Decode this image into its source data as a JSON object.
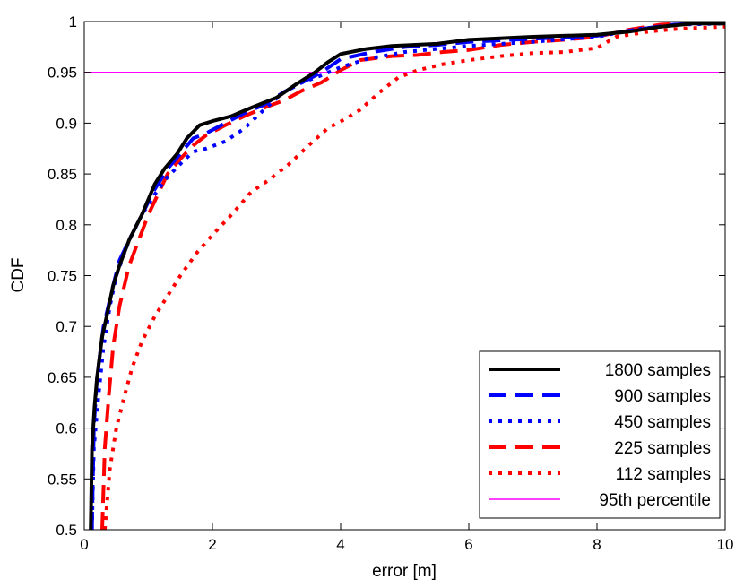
{
  "chart_data": {
    "type": "line",
    "title": "",
    "xlabel": "error [m]",
    "ylabel": "CDF",
    "xlim": [
      0,
      10
    ],
    "ylim": [
      0.5,
      1.0
    ],
    "grid": false,
    "legend_position": "bottom-right",
    "x_ticks": [
      "0",
      "2",
      "4",
      "6",
      "8",
      "10"
    ],
    "y_ticks": [
      "0.5",
      "0.55",
      "0.6",
      "0.65",
      "0.7",
      "0.75",
      "0.8",
      "0.85",
      "0.9",
      "0.95",
      "1"
    ],
    "series": [
      {
        "name": "1800 samples",
        "color": "#000000",
        "style": "solid",
        "points": [
          [
            0.1,
            0.5
          ],
          [
            0.12,
            0.58
          ],
          [
            0.16,
            0.62
          ],
          [
            0.2,
            0.65
          ],
          [
            0.28,
            0.69
          ],
          [
            0.35,
            0.71
          ],
          [
            0.45,
            0.74
          ],
          [
            0.55,
            0.76
          ],
          [
            0.7,
            0.785
          ],
          [
            0.9,
            0.81
          ],
          [
            1.1,
            0.84
          ],
          [
            1.25,
            0.855
          ],
          [
            1.45,
            0.87
          ],
          [
            1.6,
            0.885
          ],
          [
            1.8,
            0.898
          ],
          [
            2.0,
            0.902
          ],
          [
            2.3,
            0.907
          ],
          [
            2.6,
            0.915
          ],
          [
            3.0,
            0.925
          ],
          [
            3.3,
            0.938
          ],
          [
            3.6,
            0.95
          ],
          [
            3.8,
            0.96
          ],
          [
            4.0,
            0.968
          ],
          [
            4.4,
            0.973
          ],
          [
            4.8,
            0.976
          ],
          [
            5.5,
            0.978
          ],
          [
            6.0,
            0.982
          ],
          [
            7.0,
            0.985
          ],
          [
            8.0,
            0.987
          ],
          [
            8.5,
            0.99
          ],
          [
            9.0,
            0.995
          ],
          [
            9.5,
            0.998
          ],
          [
            10.0,
            0.998
          ]
        ]
      },
      {
        "name": "900 samples",
        "color": "#0000ff",
        "style": "dashed",
        "points": [
          [
            0.12,
            0.5
          ],
          [
            0.15,
            0.6
          ],
          [
            0.2,
            0.65
          ],
          [
            0.3,
            0.7
          ],
          [
            0.45,
            0.74
          ],
          [
            0.55,
            0.765
          ],
          [
            0.7,
            0.785
          ],
          [
            0.9,
            0.81
          ],
          [
            1.1,
            0.835
          ],
          [
            1.3,
            0.855
          ],
          [
            1.5,
            0.87
          ],
          [
            1.7,
            0.885
          ],
          [
            1.9,
            0.89
          ],
          [
            2.2,
            0.9
          ],
          [
            2.5,
            0.91
          ],
          [
            2.8,
            0.918
          ],
          [
            3.1,
            0.93
          ],
          [
            3.4,
            0.94
          ],
          [
            3.7,
            0.95
          ],
          [
            4.0,
            0.963
          ],
          [
            4.5,
            0.97
          ],
          [
            5.0,
            0.975
          ],
          [
            5.5,
            0.977
          ],
          [
            6.0,
            0.98
          ],
          [
            7.0,
            0.983
          ],
          [
            8.0,
            0.986
          ],
          [
            8.6,
            0.992
          ],
          [
            9.2,
            0.997
          ],
          [
            10.0,
            0.999
          ]
        ]
      },
      {
        "name": "450 samples",
        "color": "#0000ff",
        "style": "dotted",
        "points": [
          [
            0.12,
            0.5
          ],
          [
            0.15,
            0.58
          ],
          [
            0.22,
            0.63
          ],
          [
            0.3,
            0.68
          ],
          [
            0.4,
            0.72
          ],
          [
            0.5,
            0.75
          ],
          [
            0.7,
            0.785
          ],
          [
            0.9,
            0.81
          ],
          [
            1.1,
            0.83
          ],
          [
            1.3,
            0.847
          ],
          [
            1.5,
            0.86
          ],
          [
            1.7,
            0.872
          ],
          [
            1.9,
            0.875
          ],
          [
            2.2,
            0.882
          ],
          [
            2.5,
            0.895
          ],
          [
            2.8,
            0.913
          ],
          [
            3.1,
            0.93
          ],
          [
            3.4,
            0.94
          ],
          [
            3.7,
            0.947
          ],
          [
            4.0,
            0.955
          ],
          [
            4.4,
            0.963
          ],
          [
            5.0,
            0.97
          ],
          [
            5.5,
            0.973
          ],
          [
            6.0,
            0.976
          ],
          [
            6.5,
            0.978
          ],
          [
            7.0,
            0.98
          ],
          [
            8.0,
            0.985
          ],
          [
            8.7,
            0.993
          ],
          [
            9.3,
            0.997
          ],
          [
            10.0,
            0.998
          ]
        ]
      },
      {
        "name": "225 samples",
        "color": "#ff0000",
        "style": "dashed",
        "points": [
          [
            0.28,
            0.5
          ],
          [
            0.32,
            0.58
          ],
          [
            0.38,
            0.63
          ],
          [
            0.45,
            0.68
          ],
          [
            0.55,
            0.72
          ],
          [
            0.7,
            0.76
          ],
          [
            0.85,
            0.785
          ],
          [
            1.0,
            0.81
          ],
          [
            1.15,
            0.83
          ],
          [
            1.3,
            0.85
          ],
          [
            1.5,
            0.865
          ],
          [
            1.7,
            0.878
          ],
          [
            1.9,
            0.888
          ],
          [
            2.2,
            0.898
          ],
          [
            2.5,
            0.907
          ],
          [
            2.8,
            0.915
          ],
          [
            3.1,
            0.922
          ],
          [
            3.4,
            0.932
          ],
          [
            3.7,
            0.94
          ],
          [
            4.0,
            0.952
          ],
          [
            4.3,
            0.962
          ],
          [
            4.8,
            0.966
          ],
          [
            5.2,
            0.967
          ],
          [
            5.6,
            0.97
          ],
          [
            6.0,
            0.972
          ],
          [
            6.5,
            0.977
          ],
          [
            7.0,
            0.98
          ],
          [
            7.5,
            0.982
          ],
          [
            8.0,
            0.985
          ],
          [
            8.5,
            0.992
          ],
          [
            9.0,
            0.997
          ],
          [
            10.0,
            1.0
          ]
        ]
      },
      {
        "name": "112 samples",
        "color": "#ff0000",
        "style": "dotted",
        "points": [
          [
            0.32,
            0.5
          ],
          [
            0.4,
            0.56
          ],
          [
            0.5,
            0.6
          ],
          [
            0.62,
            0.63
          ],
          [
            0.75,
            0.66
          ],
          [
            0.9,
            0.685
          ],
          [
            1.1,
            0.71
          ],
          [
            1.3,
            0.73
          ],
          [
            1.5,
            0.75
          ],
          [
            1.75,
            0.772
          ],
          [
            2.0,
            0.79
          ],
          [
            2.3,
            0.81
          ],
          [
            2.6,
            0.832
          ],
          [
            2.9,
            0.845
          ],
          [
            3.2,
            0.86
          ],
          [
            3.5,
            0.878
          ],
          [
            3.8,
            0.895
          ],
          [
            4.1,
            0.905
          ],
          [
            4.3,
            0.913
          ],
          [
            4.6,
            0.93
          ],
          [
            4.9,
            0.945
          ],
          [
            5.2,
            0.952
          ],
          [
            5.6,
            0.958
          ],
          [
            6.0,
            0.962
          ],
          [
            6.5,
            0.966
          ],
          [
            7.0,
            0.969
          ],
          [
            7.5,
            0.97
          ],
          [
            8.0,
            0.974
          ],
          [
            8.3,
            0.985
          ],
          [
            8.8,
            0.99
          ],
          [
            9.3,
            0.993
          ],
          [
            9.7,
            0.994
          ],
          [
            10.0,
            0.995
          ]
        ]
      },
      {
        "name": "95th percentile",
        "color": "#ff00ff",
        "style": "solid",
        "points": [
          [
            0,
            0.95
          ],
          [
            10,
            0.95
          ]
        ]
      }
    ]
  }
}
